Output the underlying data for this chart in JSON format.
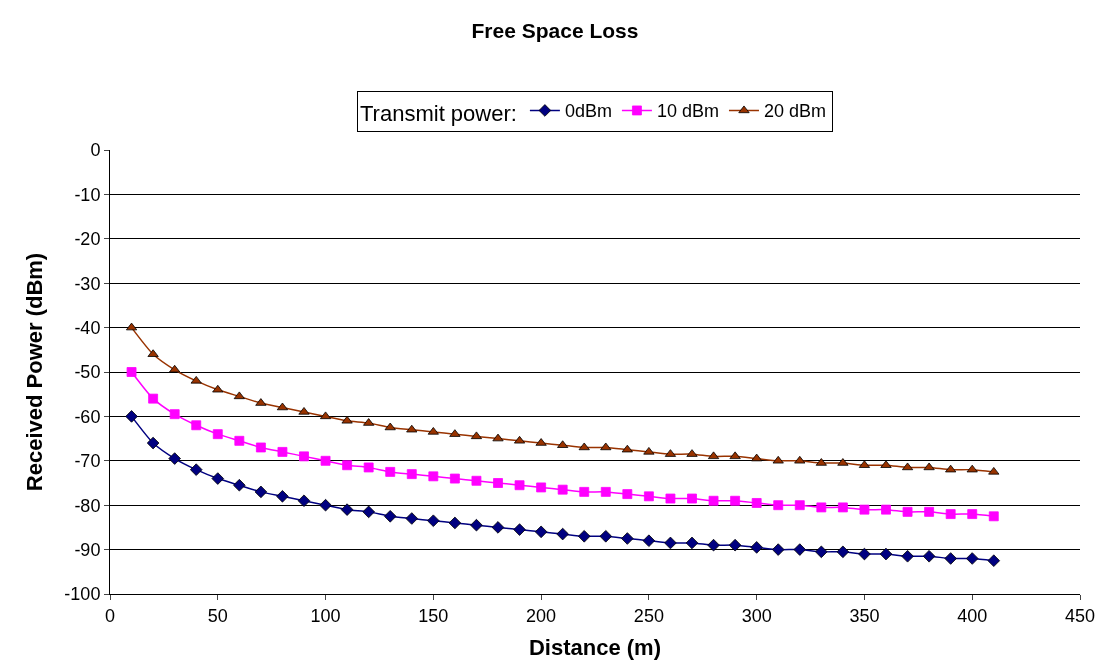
{
  "chart_data": {
    "type": "line",
    "title": "Free Space Loss",
    "xlabel": "Distance (m)",
    "ylabel": "Received Power (dBm)",
    "legend_title": "Transmit power:",
    "legend": "top",
    "x": [
      10,
      20,
      30,
      40,
      50,
      60,
      70,
      80,
      90,
      100,
      110,
      120,
      130,
      140,
      150,
      160,
      170,
      180,
      190,
      200,
      210,
      220,
      230,
      240,
      250,
      260,
      270,
      280,
      290,
      300,
      310,
      320,
      330,
      340,
      350,
      360,
      370,
      380,
      390,
      400,
      410
    ],
    "series": [
      {
        "name": "0dBm",
        "color": "#000080",
        "marker": "diamond",
        "values": [
          -60,
          -66,
          -69.5,
          -72,
          -74,
          -75.5,
          -77,
          -78,
          -79,
          -80,
          -81,
          -81.5,
          -82.5,
          -83,
          -83.5,
          -84,
          -84.5,
          -85,
          -85.5,
          -86,
          -86.5,
          -87,
          -87,
          -87.5,
          -88,
          -88.5,
          -88.5,
          -89,
          -89,
          -89.5,
          -90,
          -90,
          -90.5,
          -90.5,
          -91,
          -91,
          -91.5,
          -91.5,
          -92,
          -92,
          -92.5
        ]
      },
      {
        "name": "10 dBm",
        "color": "#ff00ff",
        "marker": "square",
        "values": [
          -50,
          -56,
          -59.5,
          -62,
          -64,
          -65.5,
          -67,
          -68,
          -69,
          -70,
          -71,
          -71.5,
          -72.5,
          -73,
          -73.5,
          -74,
          -74.5,
          -75,
          -75.5,
          -76,
          -76.5,
          -77,
          -77,
          -77.5,
          -78,
          -78.5,
          -78.5,
          -79,
          -79,
          -79.5,
          -80,
          -80,
          -80.5,
          -80.5,
          -81,
          -81,
          -81.5,
          -81.5,
          -82,
          -82,
          -82.5
        ]
      },
      {
        "name": "20 dBm",
        "color": "#993300",
        "marker": "triangle",
        "values": [
          -40,
          -46,
          -49.5,
          -52,
          -54,
          -55.5,
          -57,
          -58,
          -59,
          -60,
          -61,
          -61.5,
          -62.5,
          -63,
          -63.5,
          -64,
          -64.5,
          -65,
          -65.5,
          -66,
          -66.5,
          -67,
          -67,
          -67.5,
          -68,
          -68.5,
          -68.5,
          -69,
          -69,
          -69.5,
          -70,
          -70,
          -70.5,
          -70.5,
          -71,
          -71,
          -71.5,
          -71.5,
          -72,
          -72,
          -72.5
        ]
      }
    ],
    "xlim": [
      0,
      450
    ],
    "xticks": [
      0,
      50,
      100,
      150,
      200,
      250,
      300,
      350,
      400,
      450
    ],
    "ylim": [
      -100,
      0
    ],
    "yticks": [
      -100,
      -90,
      -80,
      -70,
      -60,
      -50,
      -40,
      -30,
      -20,
      -10,
      0
    ],
    "grid": "y",
    "line_style": "solid"
  }
}
